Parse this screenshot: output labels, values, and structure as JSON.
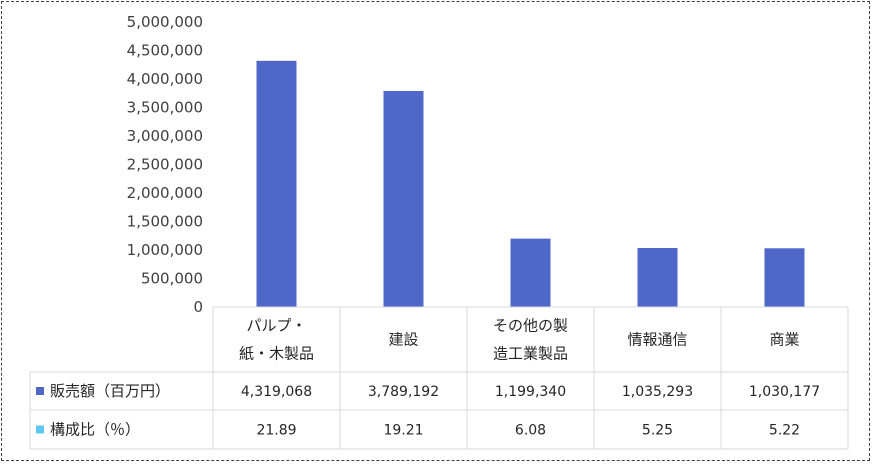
{
  "chart_data": {
    "type": "bar",
    "categories": [
      [
        "パルプ・",
        "紙・木製品"
      ],
      [
        "建設"
      ],
      [
        "その他の製",
        "造工業製品"
      ],
      [
        "情報通信"
      ],
      [
        "商業"
      ]
    ],
    "ylim": [
      0,
      5000000
    ],
    "yticks": [
      "0",
      "500,000",
      "1,000,000",
      "1,500,000",
      "2,000,000",
      "2,500,000",
      "3,000,000",
      "3,500,000",
      "4,000,000",
      "4,500,000",
      "5,000,000"
    ],
    "series": [
      {
        "name": "販売額（百万円）",
        "color": "#4f67c9",
        "values": [
          4319068,
          3789192,
          1199340,
          1035293,
          1030177
        ],
        "labels": [
          "4,319,068",
          "3,789,192",
          "1,199,340",
          "1,035,293",
          "1,030,177"
        ]
      },
      {
        "name": "構成比（％）",
        "color": "#5bc8f2",
        "values": [
          21.89,
          19.21,
          6.08,
          5.25,
          5.22
        ],
        "labels": [
          "21.89",
          "19.21",
          "6.08",
          "5.25",
          "5.22"
        ]
      }
    ],
    "grid": false,
    "legend": "data-table"
  }
}
